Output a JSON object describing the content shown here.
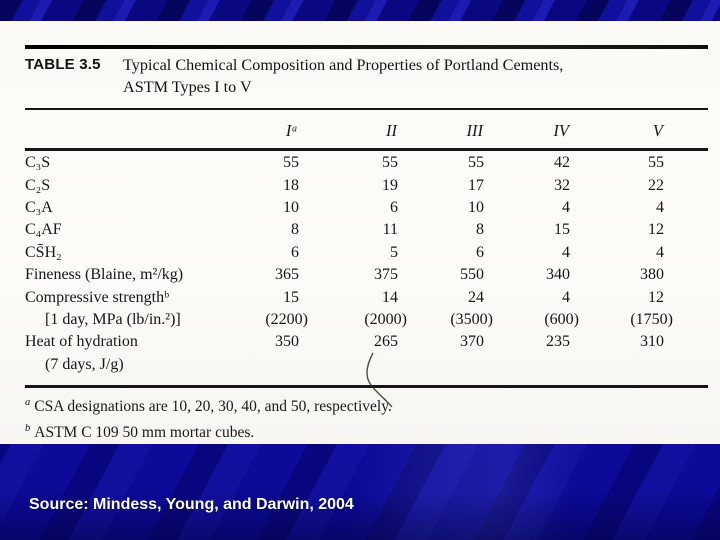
{
  "slide": {
    "source": "Source: Mindess, Young, and Darwin, 2004",
    "colors": {
      "background_blue": "#0c0a9b",
      "panel_white": "#fbfaf6",
      "table_text": "#1a1a1a",
      "source_text": "#ffffff"
    }
  },
  "table": {
    "label": "TABLE 3.5",
    "title_line1": "Typical Chemical Composition and Properties of Portland Cements,",
    "title_line2": "ASTM Types I to V",
    "column_headers": [
      "Iᵃ",
      "II",
      "III",
      "IV",
      "V"
    ],
    "rows": [
      {
        "label": "C₃S",
        "indent": false,
        "values": [
          "55",
          "55",
          "55",
          "42",
          "55"
        ]
      },
      {
        "label": "C₂S",
        "indent": false,
        "values": [
          "18",
          "19",
          "17",
          "32",
          "22"
        ]
      },
      {
        "label": "C₃A",
        "indent": false,
        "values": [
          "10",
          "6",
          "10",
          "4",
          "4"
        ]
      },
      {
        "label": "C₄AF",
        "indent": false,
        "values": [
          "8",
          "11",
          "8",
          "15",
          "12"
        ]
      },
      {
        "label": "CS̄H₂",
        "indent": false,
        "values": [
          "6",
          "5",
          "6",
          "4",
          "4"
        ]
      },
      {
        "label": "Fineness (Blaine, m²/kg)",
        "indent": false,
        "values": [
          "365",
          "375",
          "550",
          "340",
          "380"
        ]
      },
      {
        "label": "Compressive strengthᵇ",
        "indent": false,
        "values": [
          "15",
          "14",
          "24",
          "4",
          "12"
        ]
      },
      {
        "label": "[1 day, MPa (lb/in.²)]",
        "indent": true,
        "values": [
          "(2200)",
          "(2000)",
          "(3500)",
          "(600)",
          "(1750)"
        ]
      },
      {
        "label": "Heat of hydration",
        "indent": false,
        "values": [
          "350",
          "265",
          "370",
          "235",
          "310"
        ]
      },
      {
        "label": "(7 days, J/g)",
        "indent": true,
        "values": [
          "",
          "",
          "",
          "",
          ""
        ]
      }
    ],
    "footnotes": [
      {
        "marker": "a",
        "text": "CSA designations are 10, 20, 30, 40, and 50, respectively."
      },
      {
        "marker": "b",
        "text": "ASTM C 109 50 mm mortar cubes."
      }
    ]
  }
}
